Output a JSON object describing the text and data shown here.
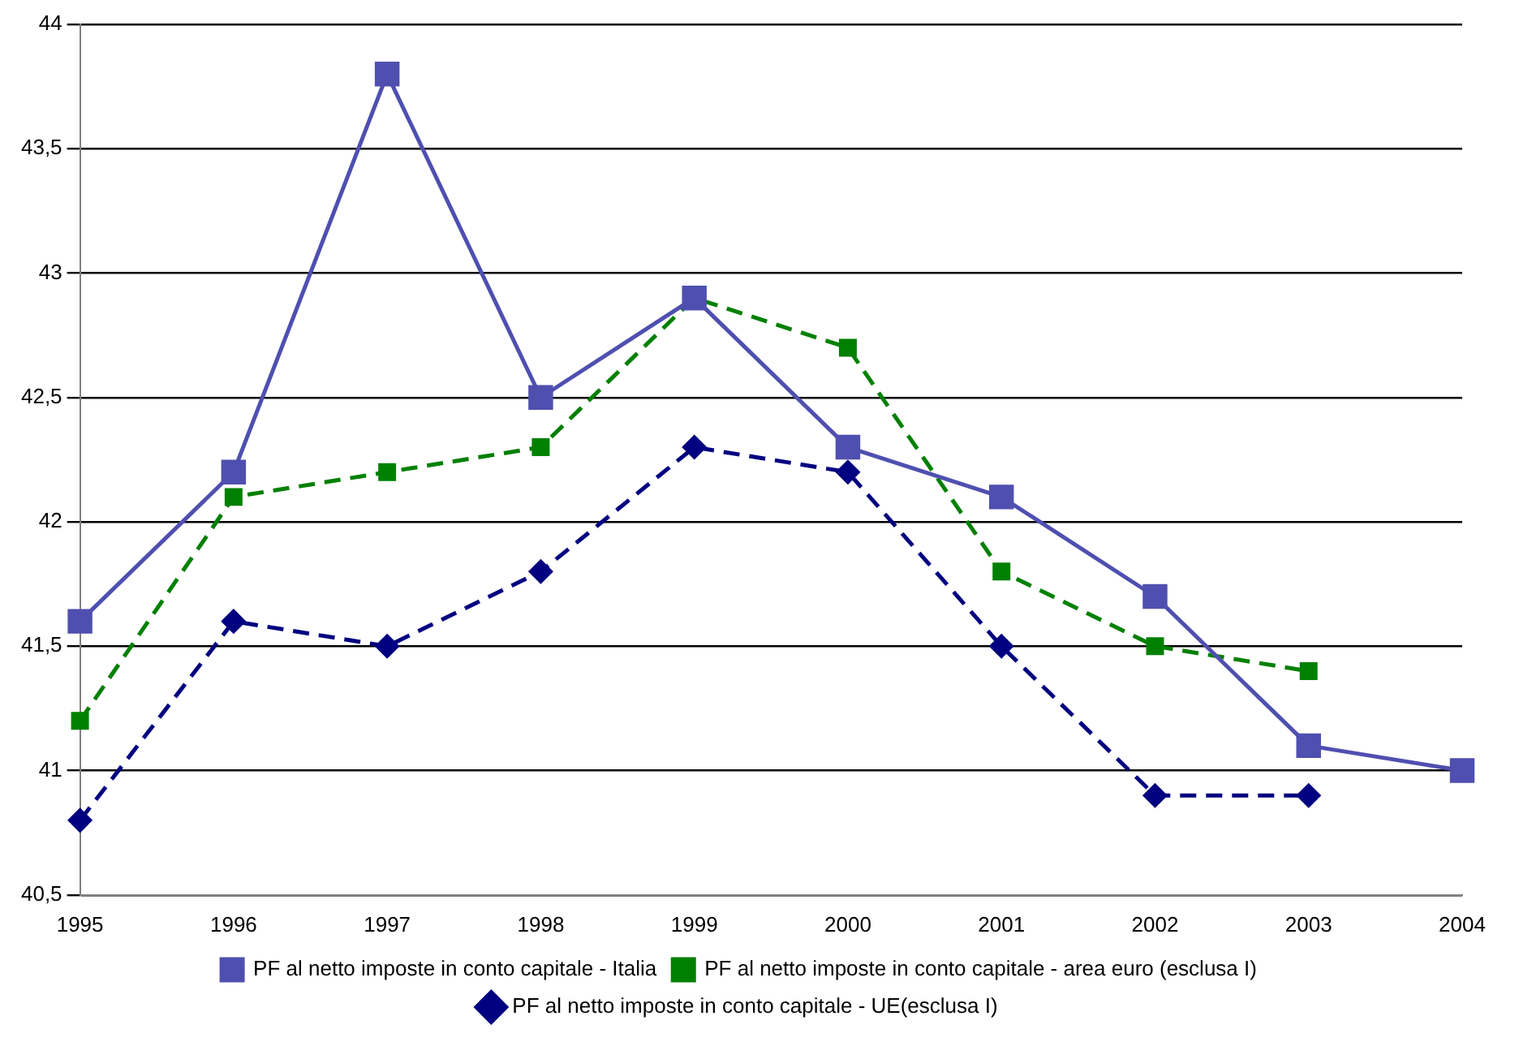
{
  "chart_data": {
    "type": "line",
    "categories": [
      "1995",
      "1996",
      "1997",
      "1998",
      "1999",
      "2000",
      "2001",
      "2002",
      "2003",
      "2004"
    ],
    "series": [
      {
        "name": "PF al netto imposte in conto capitale - Italia",
        "color": "#4f4fb0",
        "marker": "square",
        "line_style": "solid",
        "values": [
          41.6,
          42.2,
          43.8,
          42.5,
          42.9,
          42.3,
          42.1,
          41.7,
          41.1,
          41.0
        ]
      },
      {
        "name": "PF al netto imposte in conto capitale - area euro (esclusa I)",
        "color": "#008000",
        "marker": "square",
        "line_style": "dashed",
        "values": [
          41.2,
          42.1,
          42.2,
          42.3,
          42.9,
          42.7,
          41.8,
          41.5,
          41.4,
          null
        ]
      },
      {
        "name": "PF al netto imposte in conto capitale - UE(esclusa I)",
        "color": "#000080",
        "marker": "diamond",
        "line_style": "dashed",
        "values": [
          40.8,
          41.6,
          41.5,
          41.8,
          42.3,
          42.2,
          41.5,
          40.9,
          40.9,
          null
        ]
      }
    ],
    "ylim": [
      40.5,
      44
    ],
    "yticks": [
      {
        "value": 40.5,
        "label": "40,5"
      },
      41,
      {
        "value": 41.5,
        "label": "41,5"
      },
      42,
      {
        "value": 42.5,
        "label": "42,5"
      },
      43,
      {
        "value": 43.5,
        "label": "43,5"
      },
      44
    ],
    "grid": "y",
    "legend": "bottom"
  }
}
